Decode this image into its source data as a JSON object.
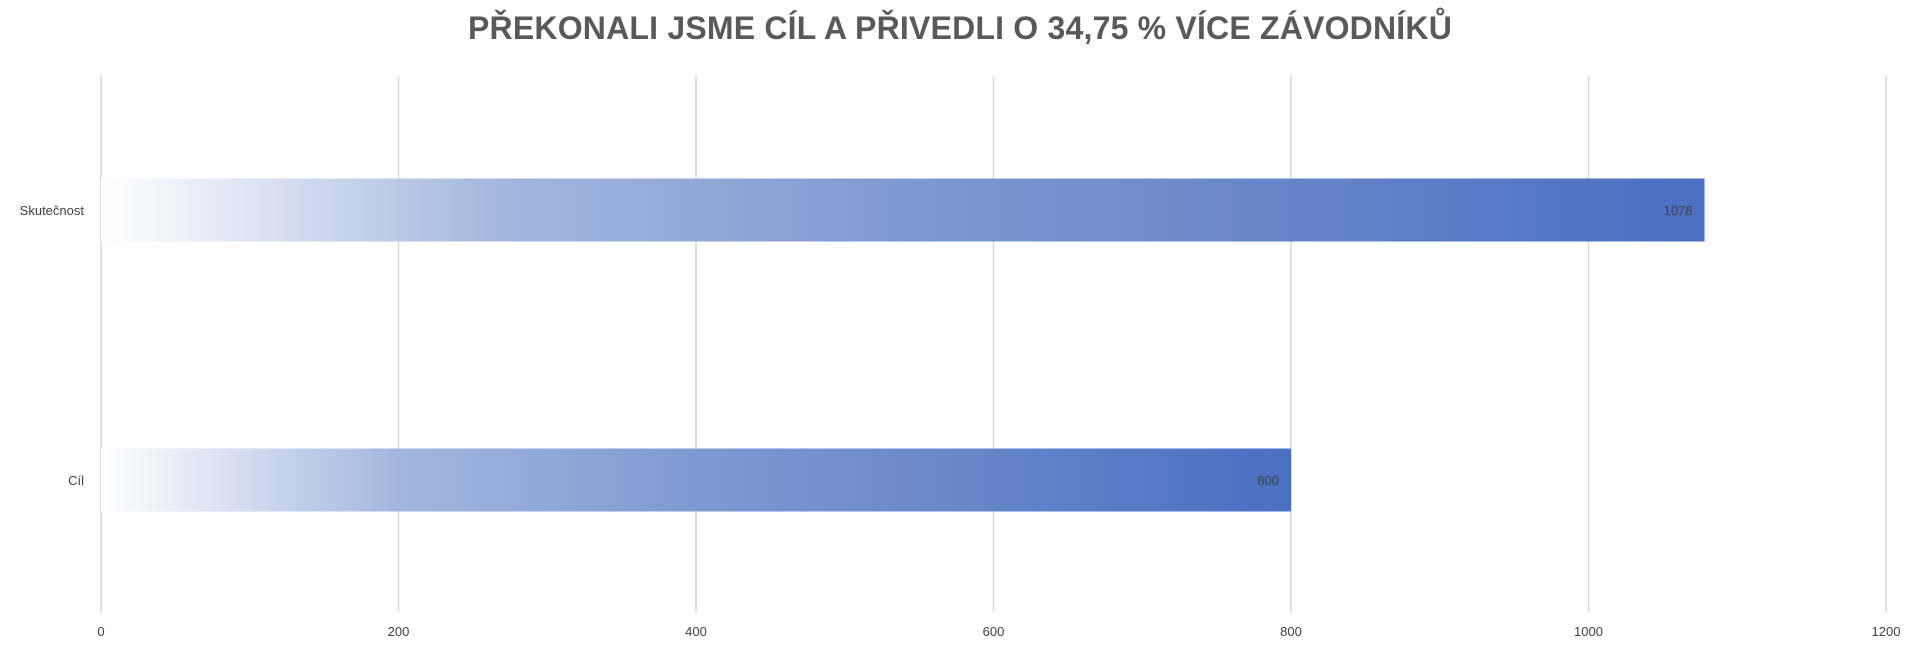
{
  "chart_data": {
    "type": "bar",
    "orientation": "horizontal",
    "title": "PŘEKONALI JSME CÍL A PŘIVEDLI O 34,75 % VÍCE ZÁVODNÍKŮ",
    "categories": [
      "Skutečnost",
      "Cíl"
    ],
    "values": [
      1078,
      800
    ],
    "data_labels": [
      "1078",
      "800"
    ],
    "xlim": [
      0,
      1200
    ],
    "x_ticks": [
      0,
      200,
      400,
      600,
      800,
      1000,
      1200
    ],
    "x_tick_labels": [
      "0",
      "200",
      "400",
      "600",
      "800",
      "1000",
      "1200"
    ],
    "xlabel": "",
    "ylabel": "",
    "grid": true,
    "legend": "none",
    "bar_color": "#4472c4",
    "bar_fill": "gradient from white to blue",
    "grid_color": "#d9d9d9"
  }
}
